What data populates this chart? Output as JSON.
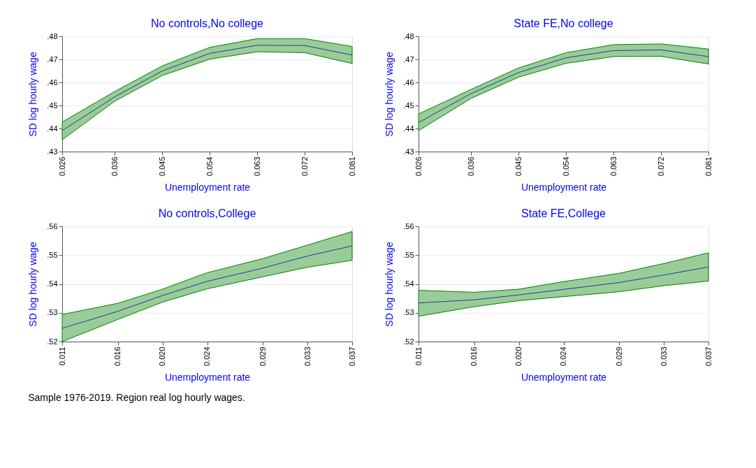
{
  "chart_data": [
    {
      "type": "line",
      "title": "No controls,No college",
      "xlabel": "Unemployment rate",
      "ylabel": "SD log hourly wage",
      "x": [
        0.026,
        0.036,
        0.045,
        0.054,
        0.063,
        0.072,
        0.081
      ],
      "xlim": [
        0.026,
        0.081
      ],
      "ylim": [
        0.43,
        0.48
      ],
      "grid": "y",
      "xticks": [
        {
          "value": 0.026,
          "label": "0.026"
        },
        {
          "value": 0.036,
          "label": "0.036"
        },
        {
          "value": 0.045,
          "label": "0.045"
        },
        {
          "value": 0.054,
          "label": "0.054"
        },
        {
          "value": 0.063,
          "label": "0.063"
        },
        {
          "value": 0.072,
          "label": "0.072"
        },
        {
          "value": 0.081,
          "label": "0.081"
        }
      ],
      "yticks": [
        {
          "value": 0.43,
          "label": ".43"
        },
        {
          "value": 0.44,
          "label": ".44"
        },
        {
          "value": 0.45,
          "label": ".45"
        },
        {
          "value": 0.46,
          "label": ".46"
        },
        {
          "value": 0.47,
          "label": ".47"
        },
        {
          "value": 0.48,
          "label": ".48"
        }
      ],
      "series": [
        {
          "color": "#1f3f8f",
          "values": [
            0.4391,
            0.4538,
            0.465,
            0.4726,
            0.4761,
            0.476,
            0.4719
          ],
          "lower": [
            0.4351,
            0.4519,
            0.463,
            0.4701,
            0.4733,
            0.4729,
            0.4682
          ],
          "upper": [
            0.4428,
            0.4561,
            0.4672,
            0.4752,
            0.479,
            0.479,
            0.4756
          ]
        }
      ]
    },
    {
      "type": "line",
      "title": "State FE,No college",
      "xlabel": "Unemployment rate",
      "ylabel": "SD log hourly wage",
      "x": [
        0.026,
        0.036,
        0.045,
        0.054,
        0.063,
        0.072,
        0.081
      ],
      "xlim": [
        0.026,
        0.081
      ],
      "ylim": [
        0.43,
        0.48
      ],
      "grid": "y",
      "xticks": [
        {
          "value": 0.026,
          "label": "0.026"
        },
        {
          "value": 0.036,
          "label": "0.036"
        },
        {
          "value": 0.045,
          "label": "0.045"
        },
        {
          "value": 0.054,
          "label": "0.054"
        },
        {
          "value": 0.063,
          "label": "0.063"
        },
        {
          "value": 0.072,
          "label": "0.072"
        },
        {
          "value": 0.081,
          "label": "0.081"
        }
      ],
      "yticks": [
        {
          "value": 0.43,
          "label": ".43"
        },
        {
          "value": 0.44,
          "label": ".44"
        },
        {
          "value": 0.45,
          "label": ".45"
        },
        {
          "value": 0.46,
          "label": ".46"
        },
        {
          "value": 0.47,
          "label": ".47"
        },
        {
          "value": 0.48,
          "label": ".48"
        }
      ],
      "series": [
        {
          "color": "#1f3f8f",
          "values": [
            0.4426,
            0.4552,
            0.4643,
            0.4707,
            0.4738,
            0.4741,
            0.4712
          ],
          "lower": [
            0.4391,
            0.4531,
            0.4623,
            0.4683,
            0.4712,
            0.4713,
            0.468
          ],
          "upper": [
            0.4463,
            0.457,
            0.4663,
            0.4729,
            0.4764,
            0.4767,
            0.4745
          ]
        }
      ]
    },
    {
      "type": "line",
      "title": "No controls,College",
      "xlabel": "Unemployment rate",
      "ylabel": "SD log hourly wage",
      "x": [
        0.011,
        0.016,
        0.02,
        0.024,
        0.029,
        0.033,
        0.037
      ],
      "xlim": [
        0.011,
        0.037
      ],
      "ylim": [
        0.52,
        0.56
      ],
      "grid": "y",
      "xticks": [
        {
          "value": 0.011,
          "label": "0.011"
        },
        {
          "value": 0.016,
          "label": "0.016"
        },
        {
          "value": 0.02,
          "label": "0.020"
        },
        {
          "value": 0.024,
          "label": "0.024"
        },
        {
          "value": 0.029,
          "label": "0.029"
        },
        {
          "value": 0.033,
          "label": "0.033"
        },
        {
          "value": 0.037,
          "label": "0.037"
        }
      ],
      "yticks": [
        {
          "value": 0.52,
          "label": ".52"
        },
        {
          "value": 0.53,
          "label": ".53"
        },
        {
          "value": 0.54,
          "label": ".54"
        },
        {
          "value": 0.55,
          "label": ".55"
        },
        {
          "value": 0.56,
          "label": ".56"
        }
      ],
      "series": [
        {
          "color": "#1f3f8f",
          "values": [
            0.5246,
            0.5305,
            0.536,
            0.5409,
            0.5455,
            0.5497,
            0.5532
          ],
          "lower": [
            0.52,
            0.5277,
            0.5337,
            0.5383,
            0.5425,
            0.5458,
            0.5482
          ],
          "upper": [
            0.5294,
            0.5333,
            0.5382,
            0.5439,
            0.5488,
            0.5535,
            0.5582
          ]
        }
      ]
    },
    {
      "type": "line",
      "title": "State FE,College",
      "xlabel": "Unemployment rate",
      "ylabel": "SD log hourly wage",
      "x": [
        0.011,
        0.016,
        0.02,
        0.024,
        0.029,
        0.033,
        0.037
      ],
      "xlim": [
        0.011,
        0.037
      ],
      "ylim": [
        0.52,
        0.56
      ],
      "grid": "y",
      "xticks": [
        {
          "value": 0.011,
          "label": "0.011"
        },
        {
          "value": 0.016,
          "label": "0.016"
        },
        {
          "value": 0.02,
          "label": "0.020"
        },
        {
          "value": 0.024,
          "label": "0.024"
        },
        {
          "value": 0.029,
          "label": "0.029"
        },
        {
          "value": 0.033,
          "label": "0.033"
        },
        {
          "value": 0.037,
          "label": "0.037"
        }
      ],
      "yticks": [
        {
          "value": 0.52,
          "label": ".52"
        },
        {
          "value": 0.53,
          "label": ".53"
        },
        {
          "value": 0.54,
          "label": ".54"
        },
        {
          "value": 0.55,
          "label": ".55"
        },
        {
          "value": 0.56,
          "label": ".56"
        }
      ],
      "annotations": [
        "Sample 1976-2019. Region real log hourly wages."
      ],
      "series": [
        {
          "color": "#1f3f8f",
          "values": [
            0.5334,
            0.5345,
            0.5362,
            0.5381,
            0.5405,
            0.5431,
            0.5459
          ],
          "lower": [
            0.5288,
            0.5321,
            0.5342,
            0.5356,
            0.5373,
            0.5394,
            0.541
          ],
          "upper": [
            0.5378,
            0.5371,
            0.5382,
            0.5408,
            0.5437,
            0.5471,
            0.5508
          ]
        }
      ]
    }
  ]
}
